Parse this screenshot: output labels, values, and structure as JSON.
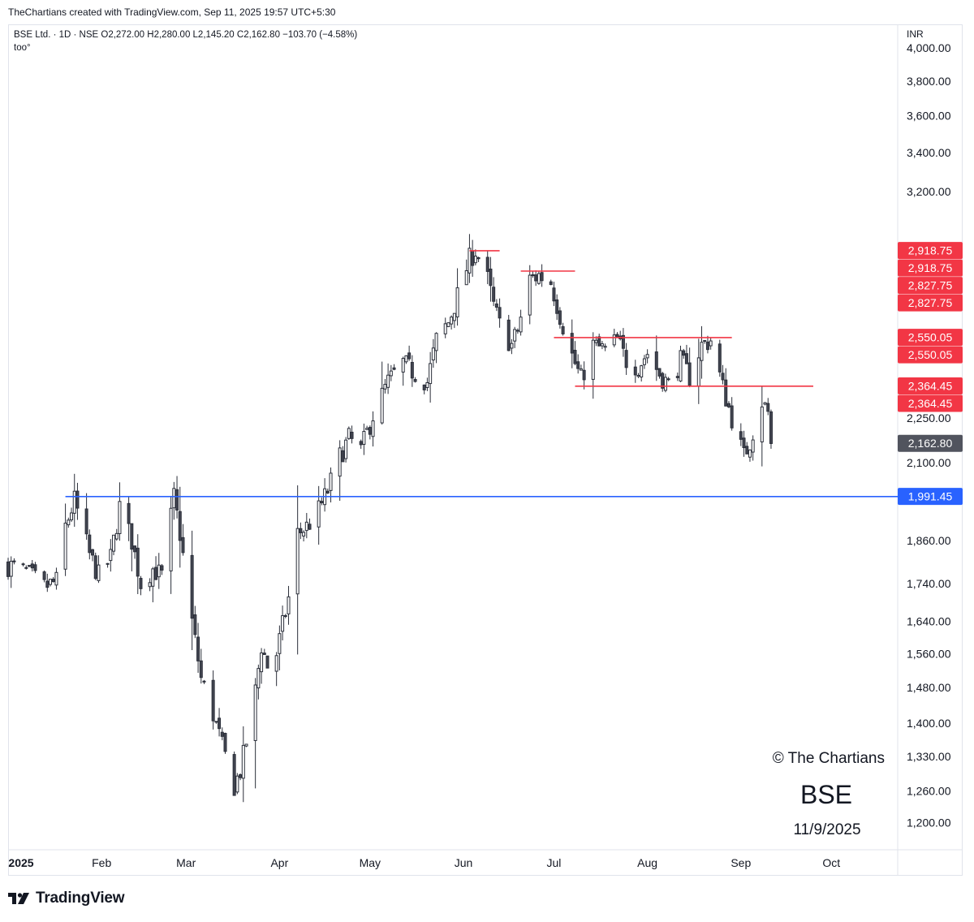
{
  "header": {
    "credit": "TheChartians created with TradingView.com, Sep 11, 2025 19:57 UTC+5:30"
  },
  "legend": {
    "symbol_line": "BSE Ltd. · 1D · NSE  O2,272.00  H2,280.00  L2,145.20  C2,162.80  −103.70 (−4.58%)",
    "indicator": "too°"
  },
  "watermark": {
    "copyright": "© The Chartians",
    "ticker": "BSE",
    "date": "11/9/2025"
  },
  "footer": {
    "brand": "TradingView"
  },
  "colors": {
    "candle_up_fill": "#ffffff",
    "candle_down_fill": "#434651",
    "candle_outline": "#2a2e39",
    "resistance_line": "#f23645",
    "support_line": "#2962ff",
    "last_price_badge": "#51545e",
    "price_axis_text": "#131722"
  },
  "chart_data": {
    "type": "candlestick",
    "title": "BSE Ltd. · 1D · NSE",
    "currency": "INR",
    "y_scale": "log",
    "ylim": [
      1150,
      4150
    ],
    "y_ticks": [
      1200,
      1260,
      1330,
      1400,
      1480,
      1560,
      1640,
      1740,
      1860,
      2100,
      2250,
      3200,
      3400,
      3600,
      3800,
      4000
    ],
    "y_tick_labels": [
      "1,200.00",
      "1,260.00",
      "1,330.00",
      "1,400.00",
      "1,480.00",
      "1,560.00",
      "1,640.00",
      "1,740.00",
      "1,860.00",
      "2,100.00",
      "2,250.00",
      "3,200.00",
      "3,400.00",
      "3,600.00",
      "3,800.00",
      "4,000.00"
    ],
    "x_labels": [
      "2025",
      "Feb",
      "Mar",
      "Apr",
      "May",
      "Jun",
      "Jul",
      "Aug",
      "Sep",
      "Oct"
    ],
    "x_range": [
      "2025-01-01",
      "2025-10-23"
    ],
    "last_close": 2162.8,
    "last_ohlc": {
      "open": 2272.0,
      "high": 2280.0,
      "low": 2145.2,
      "close": 2162.8,
      "change": -103.7,
      "change_pct": -4.58
    },
    "horizontal_lines": [
      {
        "price": 2918.75,
        "from": "2025-06-03",
        "to": "2025-06-13",
        "color": "red"
      },
      {
        "price": 2827.75,
        "from": "2025-06-20",
        "to": "2025-07-08",
        "color": "red"
      },
      {
        "price": 2550.05,
        "from": "2025-07-01",
        "to": "2025-08-29",
        "color": "red"
      },
      {
        "price": 2364.45,
        "from": "2025-07-08",
        "to": "2025-09-25",
        "color": "red"
      },
      {
        "price": 1991.45,
        "from": "2025-01-20",
        "to": "2025-10-23",
        "color": "blue"
      }
    ],
    "price_badges": [
      {
        "label": "2,918.75",
        "price": 2918.75,
        "kind": "red"
      },
      {
        "label": "2,918.75",
        "price": 2918.75,
        "kind": "red"
      },
      {
        "label": "2,827.75",
        "price": 2827.75,
        "kind": "red"
      },
      {
        "label": "2,827.75",
        "price": 2827.75,
        "kind": "red"
      },
      {
        "label": "2,550.05",
        "price": 2550.05,
        "kind": "red"
      },
      {
        "label": "2,550.05",
        "price": 2550.05,
        "kind": "red"
      },
      {
        "label": "2,364.45",
        "price": 2364.45,
        "kind": "red"
      },
      {
        "label": "2,364.45",
        "price": 2364.45,
        "kind": "red"
      },
      {
        "label": "2,162.80",
        "price": 2162.8,
        "kind": "last"
      },
      {
        "label": "1,991.45",
        "price": 1991.45,
        "kind": "blue"
      }
    ],
    "close_path": [
      [
        "2025-01-01",
        1790
      ],
      [
        "2025-01-07",
        1770
      ],
      [
        "2025-01-13",
        1730
      ],
      [
        "2025-01-17",
        1745
      ],
      [
        "2025-01-20",
        1900
      ],
      [
        "2025-01-23",
        1980
      ],
      [
        "2025-01-28",
        1820
      ],
      [
        "2025-01-31",
        1760
      ],
      [
        "2025-02-04",
        1810
      ],
      [
        "2025-02-07",
        1960
      ],
      [
        "2025-02-11",
        1860
      ],
      [
        "2025-02-14",
        1740
      ],
      [
        "2025-02-18",
        1780
      ],
      [
        "2025-02-21",
        1760
      ],
      [
        "2025-02-25",
        1990
      ],
      [
        "2025-02-27",
        1880
      ],
      [
        "2025-03-03",
        1640
      ],
      [
        "2025-03-06",
        1500
      ],
      [
        "2025-03-10",
        1420
      ],
      [
        "2025-03-13",
        1350
      ],
      [
        "2025-03-17",
        1270
      ],
      [
        "2025-03-19",
        1300
      ],
      [
        "2025-03-21",
        1360
      ],
      [
        "2025-03-24",
        1470
      ],
      [
        "2025-03-26",
        1580
      ],
      [
        "2025-03-28",
        1530
      ],
      [
        "2025-03-31",
        1560
      ],
      [
        "2025-04-04",
        1700
      ],
      [
        "2025-04-07",
        1880
      ],
      [
        "2025-04-10",
        1900
      ],
      [
        "2025-04-14",
        1950
      ],
      [
        "2025-04-17",
        2010
      ],
      [
        "2025-04-21",
        2120
      ],
      [
        "2025-04-24",
        2180
      ],
      [
        "2025-04-28",
        2140
      ],
      [
        "2025-05-02",
        2260
      ],
      [
        "2025-05-07",
        2380
      ],
      [
        "2025-05-12",
        2450
      ],
      [
        "2025-05-15",
        2420
      ],
      [
        "2025-05-20",
        2380
      ],
      [
        "2025-05-23",
        2540
      ],
      [
        "2025-05-27",
        2610
      ],
      [
        "2025-05-30",
        2720
      ],
      [
        "2025-06-03",
        2880
      ],
      [
        "2025-06-05",
        2920
      ],
      [
        "2025-06-09",
        2790
      ],
      [
        "2025-06-11",
        2680
      ],
      [
        "2025-06-13",
        2600
      ],
      [
        "2025-06-17",
        2520
      ],
      [
        "2025-06-19",
        2580
      ],
      [
        "2025-06-23",
        2790
      ],
      [
        "2025-06-26",
        2810
      ],
      [
        "2025-06-30",
        2780
      ],
      [
        "2025-07-03",
        2640
      ],
      [
        "2025-07-07",
        2480
      ],
      [
        "2025-07-10",
        2390
      ],
      [
        "2025-07-14",
        2520
      ],
      [
        "2025-07-18",
        2500
      ],
      [
        "2025-07-22",
        2540
      ],
      [
        "2025-07-25",
        2460
      ],
      [
        "2025-07-29",
        2440
      ],
      [
        "2025-08-01",
        2490
      ],
      [
        "2025-08-05",
        2410
      ],
      [
        "2025-08-08",
        2370
      ],
      [
        "2025-08-12",
        2460
      ],
      [
        "2025-08-15",
        2400
      ],
      [
        "2025-08-19",
        2520
      ],
      [
        "2025-08-22",
        2540
      ],
      [
        "2025-08-26",
        2360
      ],
      [
        "2025-08-29",
        2250
      ],
      [
        "2025-09-02",
        2120
      ],
      [
        "2025-09-04",
        2170
      ],
      [
        "2025-09-08",
        2310
      ],
      [
        "2025-09-10",
        2270
      ],
      [
        "2025-09-11",
        2162.8
      ]
    ]
  }
}
